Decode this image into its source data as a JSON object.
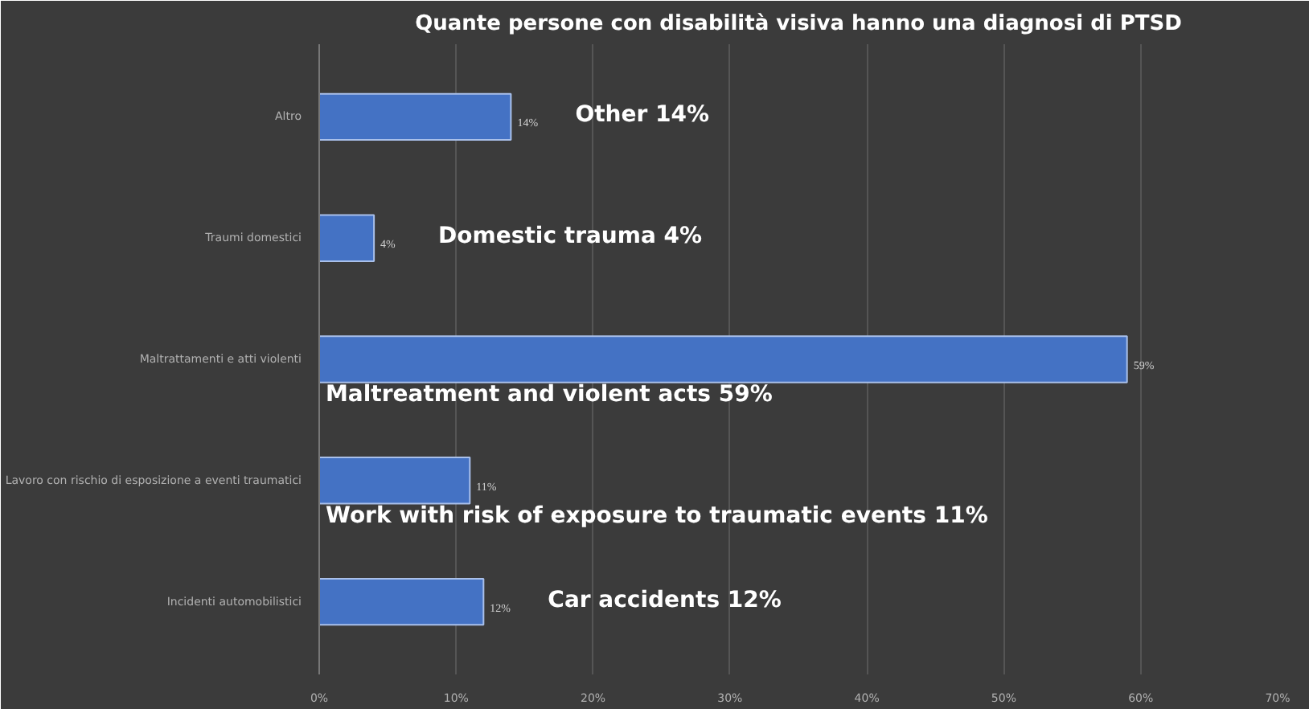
{
  "chart_data": {
    "type": "bar",
    "orientation": "horizontal",
    "title": "Quante persone con disabilità visiva hanno una diagnosi di PTSD",
    "categories": [
      "Altro",
      "Traumi domestici",
      "Maltrattamenti e atti violenti",
      "Lavoro con rischio di esposizione a eventi traumatici",
      "Incidenti automobilistici"
    ],
    "values": [
      14,
      4,
      59,
      11,
      12
    ],
    "value_labels": [
      "14%",
      "4%",
      "59%",
      "11%",
      "12%"
    ],
    "color": "#4472c4",
    "xlim": [
      0,
      70
    ],
    "xticks": [
      {
        "value": 0,
        "label": "0%"
      },
      {
        "value": 10,
        "label": "10%"
      },
      {
        "value": 20,
        "label": "20%"
      },
      {
        "value": 30,
        "label": "30%"
      },
      {
        "value": 40,
        "label": "40%"
      },
      {
        "value": 50,
        "label": "50%"
      },
      {
        "value": 60,
        "label": "60%"
      },
      {
        "value": 70,
        "label": "70%"
      }
    ],
    "grid": "x",
    "annotations": [
      "Other 14%",
      "Domestic trauma 4%",
      "Maltreatment and violent acts 59%",
      "Work with risk of exposure to traumatic events 11%",
      "Car accidents 12%"
    ]
  }
}
